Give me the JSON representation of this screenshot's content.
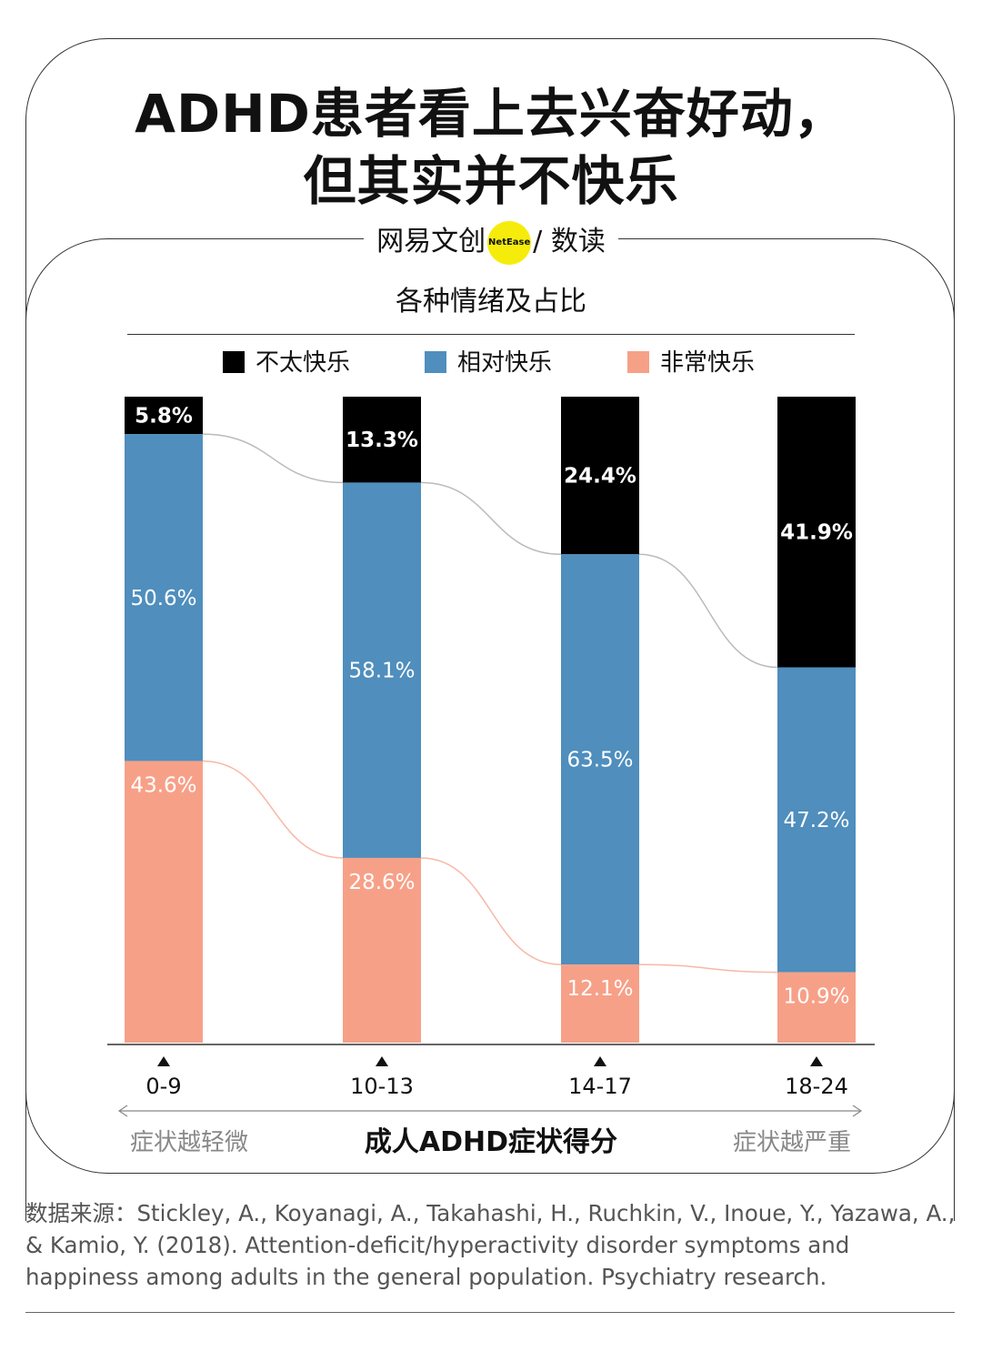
{
  "title_line1": "ADHD患者看上去兴奋好动，",
  "title_line2": "但其实并不快乐",
  "brand": {
    "left": "网易文创",
    "badge": "NetEase",
    "right": "/ 数读"
  },
  "colors": {
    "unhappy": "#000000",
    "relatively_happy": "#4f8ebd",
    "very_happy": "#f7a088"
  },
  "chart_data": {
    "type": "bar",
    "stacked": true,
    "title": "各种情绪及占比",
    "categories": [
      "0-9",
      "10-13",
      "14-17",
      "18-24"
    ],
    "series": [
      {
        "name": "不太快乐",
        "values": [
          5.8,
          13.3,
          24.4,
          41.9
        ],
        "labels": [
          "5.8%",
          "13.3%",
          "24.4%",
          "41.9%"
        ]
      },
      {
        "name": "相对快乐",
        "values": [
          50.6,
          58.1,
          63.5,
          47.2
        ],
        "labels": [
          "50.6%",
          "58.1%",
          "63.5%",
          "47.2%"
        ]
      },
      {
        "name": "非常快乐",
        "values": [
          43.6,
          28.6,
          12.1,
          10.9
        ],
        "labels": [
          "43.6%",
          "28.6%",
          "12.1%",
          "10.9%"
        ]
      }
    ],
    "xlabel": "成人ADHD症状得分",
    "x_note_left": "症状越轻微",
    "x_note_right": "症状越严重",
    "ylim": [
      0,
      100
    ],
    "legend": "top-center"
  },
  "source": "数据来源：Stickley, A., Koyanagi, A., Takahashi, H., Ruchkin, V., Inoue, Y., Yazawa, A., & Kamio, Y. (2018). Attention-deficit/hyperactivity disorder symptoms and happiness among adults in the general population. Psychiatry research."
}
